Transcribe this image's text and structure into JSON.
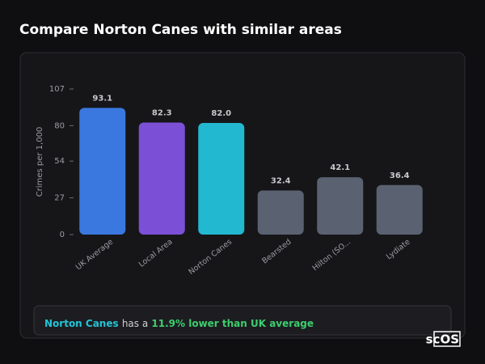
{
  "title": "Compare Norton Canes with similar areas",
  "chart_data": {
    "type": "bar",
    "ylabel": "Crimes per 1,000",
    "categories": [
      "UK Average",
      "Local Area",
      "Norton Canes",
      "Bearsted",
      "Hilton (SO...",
      "Lydiate"
    ],
    "values": [
      93.1,
      82.3,
      82.0,
      32.4,
      42.1,
      36.4
    ],
    "value_labels": [
      "93.1",
      "82.3",
      "82.0",
      "32.4",
      "42.1",
      "36.4"
    ],
    "colors": [
      "#3a78e0",
      "#7b50d6",
      "#22b8cf",
      "#5a6272",
      "#5a6272",
      "#5a6272"
    ],
    "ylim": [
      0,
      107
    ],
    "yticks": [
      0,
      27,
      54,
      80,
      107
    ]
  },
  "insight": {
    "area": "Norton Canes",
    "text": "has a",
    "highlight": "11.9% lower than UK average"
  },
  "logo": "scOS"
}
